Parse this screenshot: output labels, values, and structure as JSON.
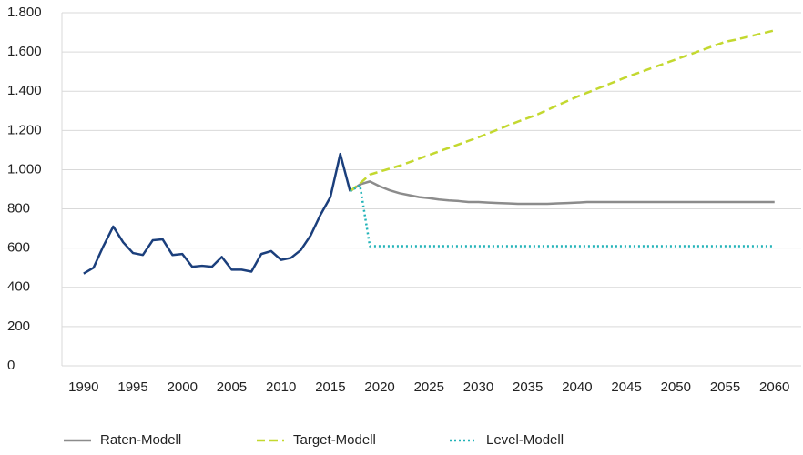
{
  "chart_data": {
    "type": "line",
    "xlim": [
      1987.8,
      2062.7
    ],
    "xticks": [
      1990,
      1995,
      2000,
      2005,
      2010,
      2015,
      2020,
      2025,
      2030,
      2035,
      2040,
      2045,
      2050,
      2055,
      2060
    ],
    "ylim": [
      0,
      1800
    ],
    "yticks": [
      0,
      200,
      400,
      600,
      800,
      {
        "value": 1000,
        "label": "1.000"
      },
      {
        "value": 1200,
        "label": "1.200"
      },
      {
        "value": 1400,
        "label": "1.400"
      },
      {
        "value": 1600,
        "label": "1.600"
      },
      {
        "value": 1800,
        "label": "1.800"
      }
    ],
    "grid": true,
    "legend": "bottom",
    "series": [
      {
        "color": "#1b3f7c",
        "style": "solid",
        "x": [
          1990,
          1991,
          1992,
          1993,
          1994,
          1995,
          1996,
          1997,
          1998,
          1999,
          2000,
          2001,
          2002,
          2003,
          2004,
          2005,
          2006,
          2007,
          2008,
          2009,
          2010,
          2011,
          2012,
          2013,
          2014,
          2015,
          2016,
          2017
        ],
        "values": [
          470,
          500,
          610,
          710,
          630,
          575,
          565,
          640,
          645,
          565,
          570,
          505,
          510,
          505,
          555,
          490,
          490,
          480,
          570,
          585,
          540,
          550,
          590,
          665,
          770,
          860,
          1080,
          890
        ]
      },
      {
        "name": "Raten-Modell",
        "color": "#8c8c8c",
        "style": "solid",
        "x": [
          2017,
          2018,
          2019,
          2020,
          2021,
          2022,
          2023,
          2024,
          2025,
          2026,
          2027,
          2028,
          2029,
          2030,
          2031,
          2032,
          2033,
          2034,
          2035,
          2036,
          2037,
          2038,
          2039,
          2040,
          2041,
          2042,
          2043,
          2044,
          2045,
          2046,
          2047,
          2048,
          2049,
          2050,
          2051,
          2052,
          2053,
          2054,
          2055,
          2056,
          2057,
          2058,
          2059,
          2060
        ],
        "values": [
          890,
          925,
          940,
          915,
          895,
          880,
          870,
          860,
          855,
          848,
          843,
          840,
          835,
          835,
          832,
          830,
          828,
          826,
          826,
          826,
          826,
          828,
          830,
          832,
          835,
          835,
          835,
          835,
          835,
          835,
          835,
          835,
          835,
          835,
          835,
          835,
          835,
          835,
          835,
          835,
          835,
          835,
          835,
          835
        ]
      },
      {
        "name": "Target-Modell",
        "color": "#c3d82f",
        "style": "dashed",
        "x": [
          2017,
          2018,
          2019,
          2020,
          2021,
          2022,
          2023,
          2024,
          2025,
          2026,
          2027,
          2028,
          2029,
          2030,
          2031,
          2032,
          2033,
          2034,
          2035,
          2036,
          2037,
          2038,
          2039,
          2040,
          2041,
          2042,
          2043,
          2044,
          2045,
          2046,
          2047,
          2048,
          2049,
          2050,
          2051,
          2052,
          2053,
          2054,
          2055,
          2056,
          2057,
          2058,
          2059,
          2060
        ],
        "values": [
          890,
          930,
          975,
          990,
          1005,
          1020,
          1038,
          1056,
          1075,
          1093,
          1111,
          1129,
          1147,
          1165,
          1185,
          1205,
          1225,
          1245,
          1263,
          1282,
          1305,
          1328,
          1350,
          1372,
          1392,
          1412,
          1432,
          1452,
          1472,
          1490,
          1508,
          1526,
          1544,
          1562,
          1580,
          1598,
          1616,
          1634,
          1652,
          1662,
          1674,
          1686,
          1698,
          1710
        ]
      },
      {
        "name": "Level-Modell",
        "color": "#22b3b8",
        "style": "dotted",
        "x": [
          2017,
          2018,
          2019,
          2020,
          2021,
          2022,
          2023,
          2024,
          2025,
          2026,
          2027,
          2028,
          2029,
          2030,
          2031,
          2032,
          2033,
          2034,
          2035,
          2036,
          2037,
          2038,
          2039,
          2040,
          2041,
          2042,
          2043,
          2044,
          2045,
          2046,
          2047,
          2048,
          2049,
          2050,
          2051,
          2052,
          2053,
          2054,
          2055,
          2056,
          2057,
          2058,
          2059,
          2060
        ],
        "values": [
          890,
          920,
          610,
          610,
          610,
          610,
          610,
          610,
          610,
          610,
          610,
          610,
          610,
          610,
          610,
          610,
          610,
          610,
          610,
          610,
          610,
          610,
          610,
          610,
          610,
          610,
          610,
          610,
          610,
          610,
          610,
          610,
          610,
          610,
          610,
          610,
          610,
          610,
          610,
          610,
          610,
          610,
          610,
          610
        ]
      }
    ]
  }
}
